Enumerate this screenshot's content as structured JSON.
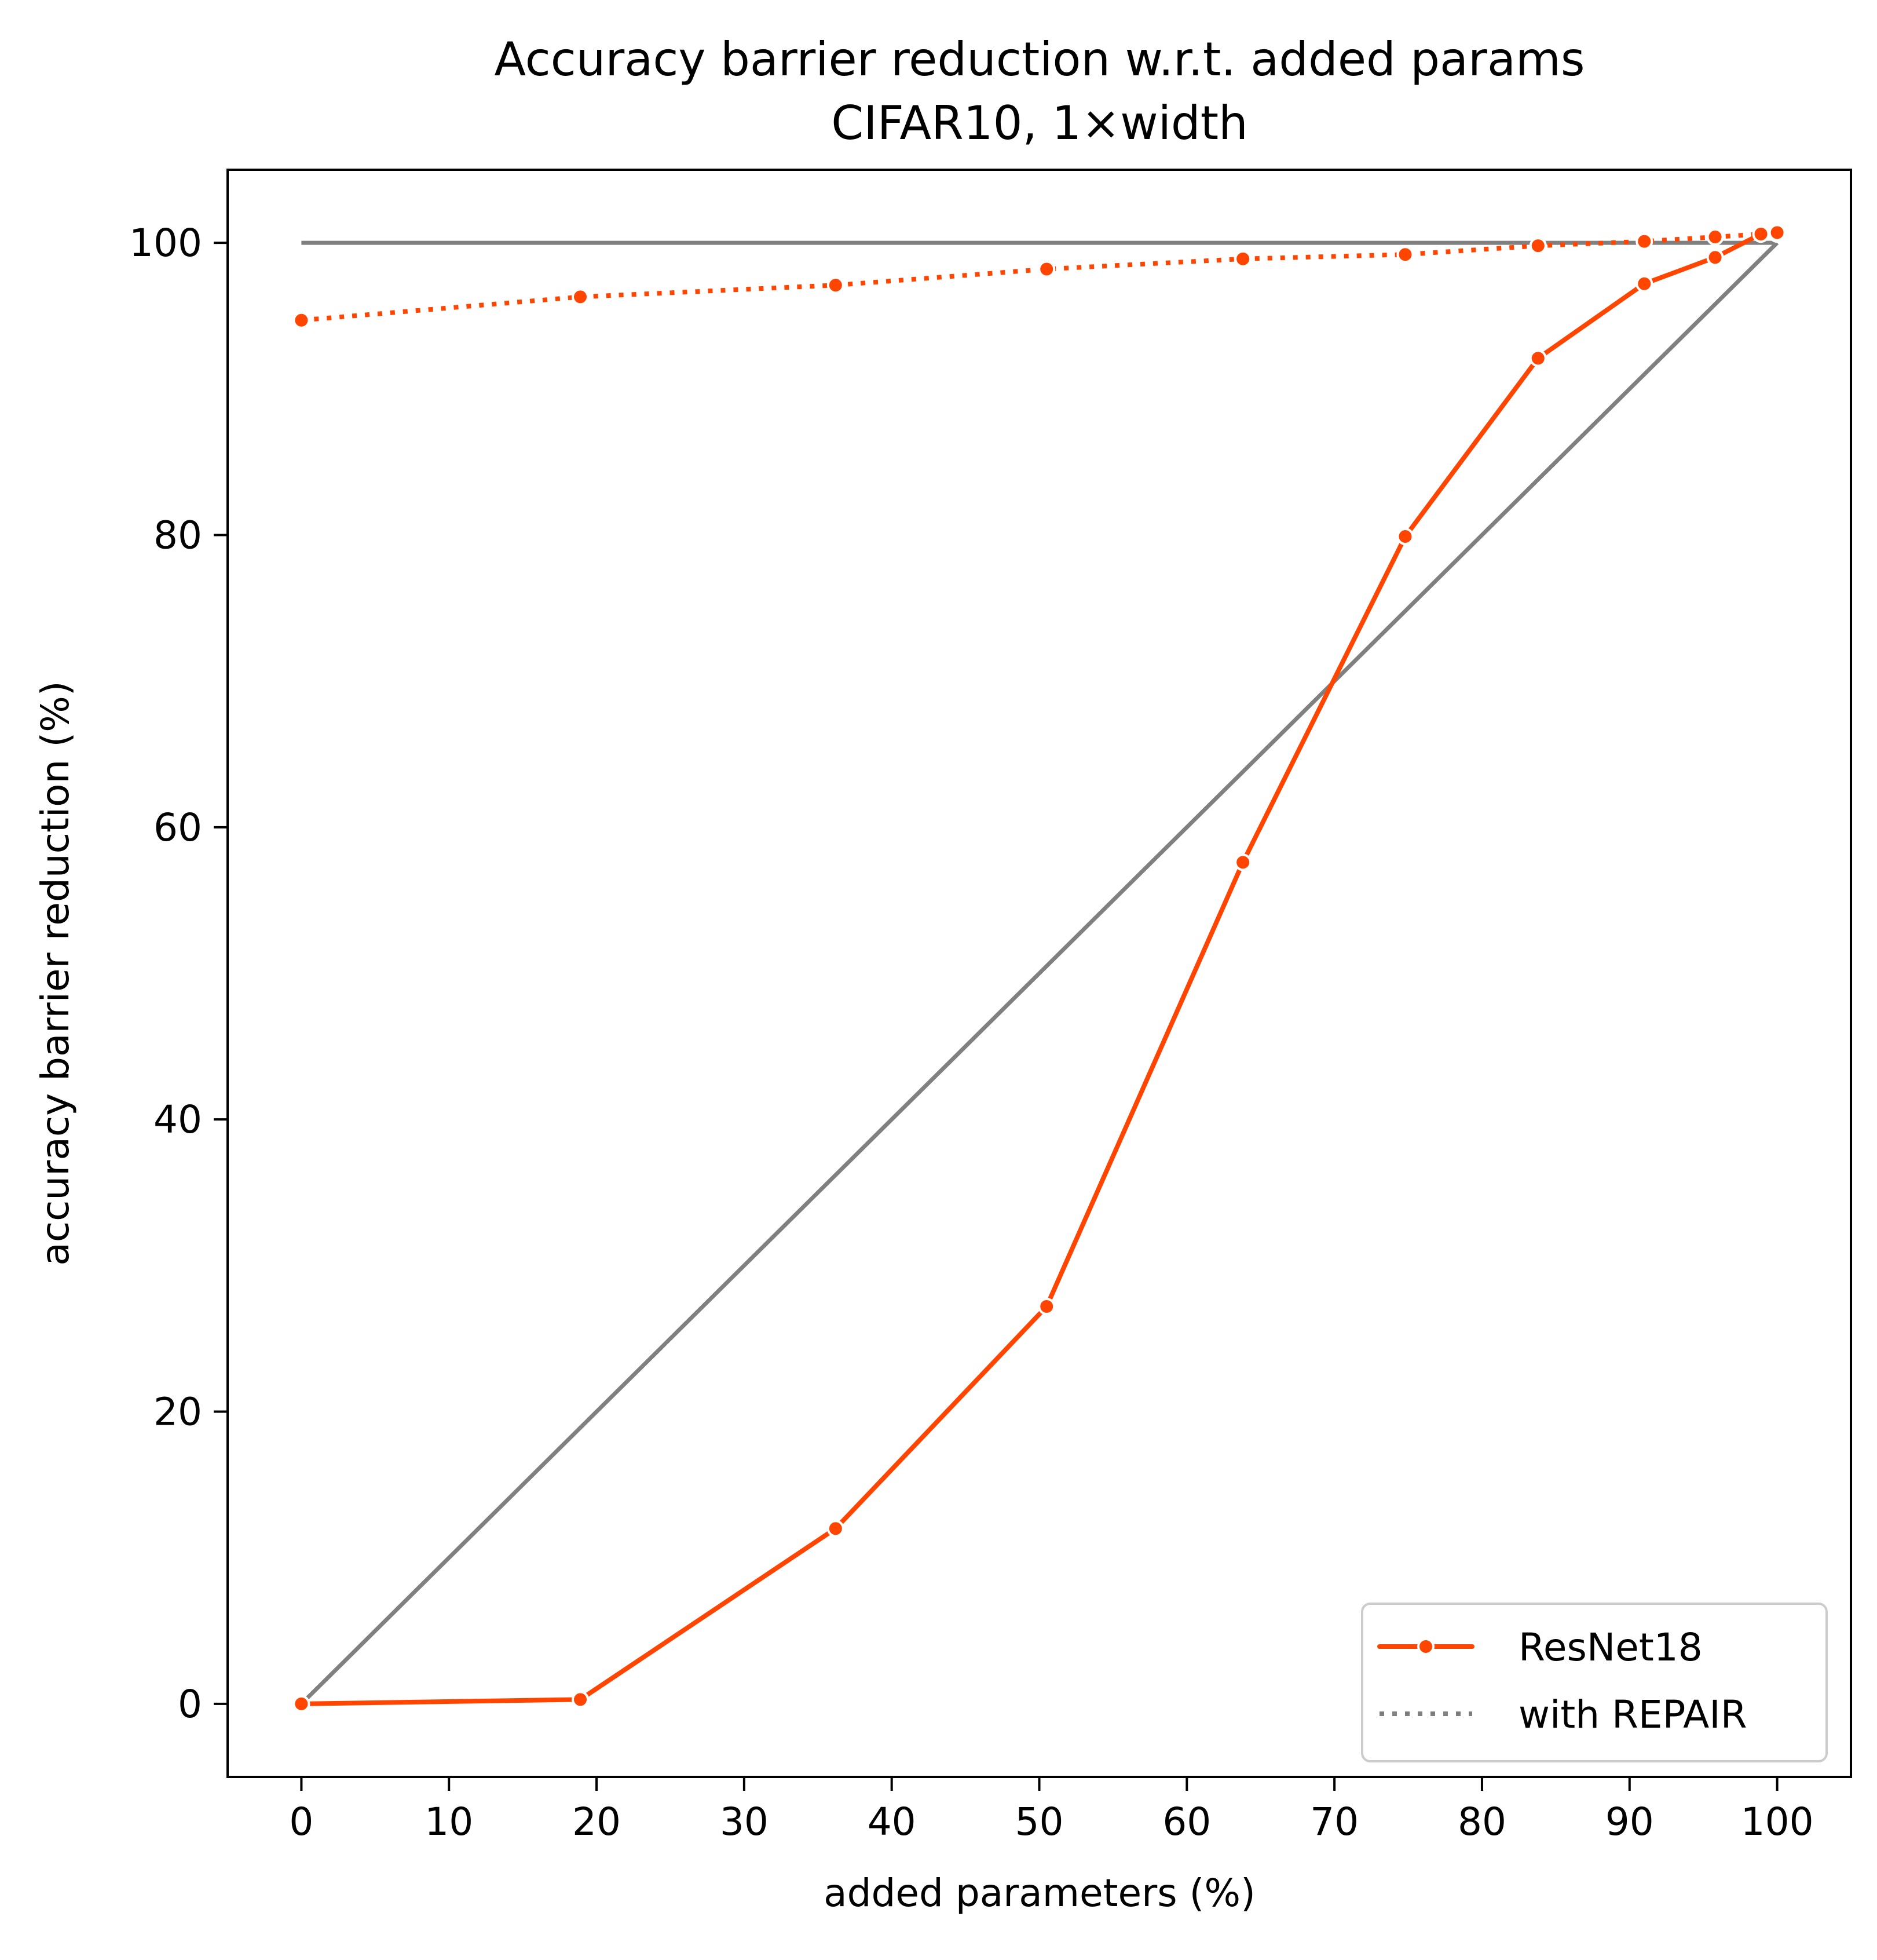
{
  "chart_data": {
    "type": "line",
    "title": "Accuracy barrier reduction w.r.t. added params",
    "subtitle": "CIFAR10, 1×width",
    "xlabel": "added parameters (%)",
    "ylabel": "accuracy barrier reduction (%)",
    "xlim": [
      -5,
      105
    ],
    "ylim": [
      -5,
      105
    ],
    "xticks": [
      0,
      10,
      20,
      30,
      40,
      50,
      60,
      70,
      80,
      90,
      100
    ],
    "yticks": [
      0,
      20,
      40,
      60,
      80,
      100
    ],
    "grid": false,
    "legend_position": "lower-right",
    "legend": [
      {
        "label": "ResNet18",
        "color": "#ff4500",
        "style": "solid-marker"
      },
      {
        "label": "with REPAIR",
        "color": "#808080",
        "style": "dotted"
      }
    ],
    "series": [
      {
        "name": "ResNet18",
        "color": "#ff4500",
        "dash": "solid",
        "markers": true,
        "x": [
          0,
          18.9,
          36.2,
          50.5,
          63.8,
          74.8,
          83.8,
          91.0,
          95.8,
          98.9,
          100
        ],
        "y": [
          0,
          0.3,
          12.0,
          27.2,
          57.6,
          79.9,
          92.1,
          97.2,
          99.0,
          100.6,
          100.6
        ]
      },
      {
        "name": "with REPAIR",
        "color": "#ff4500",
        "dash": "dotted",
        "markers": true,
        "x": [
          0,
          18.9,
          36.2,
          50.5,
          63.8,
          74.8,
          83.8,
          91.0,
          95.8,
          98.9,
          100
        ],
        "y": [
          94.7,
          96.3,
          97.1,
          98.2,
          98.9,
          99.2,
          99.8,
          100.1,
          100.4,
          100.6,
          100.7
        ]
      }
    ],
    "reference_lines": [
      {
        "x": [
          0,
          100
        ],
        "y": [
          100,
          100
        ],
        "color": "#808080"
      },
      {
        "x": [
          0,
          100
        ],
        "y": [
          0,
          100
        ],
        "color": "#808080"
      }
    ]
  }
}
